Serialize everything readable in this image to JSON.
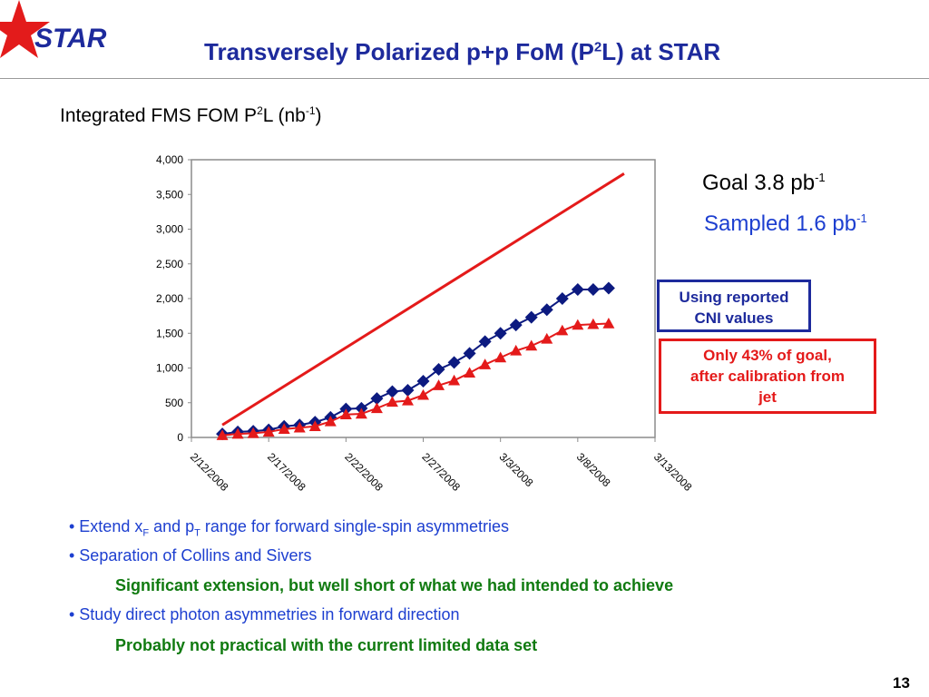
{
  "header": {
    "logo_text": "STAR",
    "title_pre": "Transversely Polarized p+p FoM (P",
    "title_sup": "2",
    "title_post": "L) at STAR"
  },
  "subtitle": {
    "pre": "Integrated FMS FOM P",
    "sup1": "2",
    "mid": "L (nb",
    "sup2": "-1",
    "post": ")"
  },
  "annotations": {
    "goal_text": "Goal 3.8 pb",
    "goal_sup": "-1",
    "sampled_text": "Sampled 1.6 pb",
    "sampled_sup": "-1",
    "box1_line1": "Using reported",
    "box1_line2": "CNI values",
    "box2_line1": "Only 43% of goal,",
    "box2_line2": "after calibration from",
    "box2_line3": "jet"
  },
  "bullets": {
    "b1_pre": "• Extend x",
    "b1_sub1": "F",
    "b1_mid": " and p",
    "b1_sub2": "T",
    "b1_post": " range for forward single-spin asymmetries",
    "b2": "• Separation of Collins and Sivers",
    "g1": "Significant extension, but well short of what we had intended to achieve",
    "b3": "• Study direct photon asymmetries in forward direction",
    "g2": "Probably not practical with the current limited data set"
  },
  "page_number": "13",
  "colors": {
    "title": "#1d2a9c",
    "goal_line": "#e41a1a",
    "diamond_series": "#0c1a80",
    "triangle_series": "#e41a1a",
    "bullet_text": "#1d3fd0",
    "green_text": "#107a10"
  },
  "chart_data": {
    "type": "line",
    "xlabel": "",
    "ylabel": "",
    "ylim": [
      0,
      4000
    ],
    "yticks": [
      "0",
      "500",
      "1,000",
      "1,500",
      "2,000",
      "2,500",
      "3,000",
      "3,500",
      "4,000"
    ],
    "xticks": [
      "2/12/2008",
      "2/17/2008",
      "2/22/2008",
      "2/27/2008",
      "3/3/2008",
      "3/8/2008",
      "3/13/2008"
    ],
    "xlim": [
      "2008-02-12",
      "2008-03-13"
    ],
    "grid": false,
    "series": [
      {
        "marker": "none",
        "color": "#e41a1a",
        "x": [
          "2008-02-14",
          "2008-03-11"
        ],
        "values": [
          180,
          3800
        ]
      },
      {
        "marker": "diamond",
        "color": "#0c1a80",
        "x": [
          "2008-02-14",
          "2008-02-15",
          "2008-02-16",
          "2008-02-17",
          "2008-02-18",
          "2008-02-19",
          "2008-02-20",
          "2008-02-21",
          "2008-02-22",
          "2008-02-23",
          "2008-02-24",
          "2008-02-25",
          "2008-02-26",
          "2008-02-27",
          "2008-02-28",
          "2008-02-29",
          "2008-03-01",
          "2008-03-02",
          "2008-03-03",
          "2008-03-04",
          "2008-03-05",
          "2008-03-06",
          "2008-03-07",
          "2008-03-08",
          "2008-03-09",
          "2008-03-10"
        ],
        "values": [
          50,
          80,
          90,
          110,
          160,
          180,
          220,
          290,
          410,
          420,
          560,
          660,
          680,
          810,
          980,
          1080,
          1210,
          1380,
          1500,
          1620,
          1730,
          1840,
          2000,
          2130,
          2130,
          2150
        ]
      },
      {
        "marker": "triangle",
        "color": "#e41a1a",
        "x": [
          "2008-02-14",
          "2008-02-15",
          "2008-02-16",
          "2008-02-17",
          "2008-02-18",
          "2008-02-19",
          "2008-02-20",
          "2008-02-21",
          "2008-02-22",
          "2008-02-23",
          "2008-02-24",
          "2008-02-25",
          "2008-02-26",
          "2008-02-27",
          "2008-02-28",
          "2008-02-29",
          "2008-03-01",
          "2008-03-02",
          "2008-03-03",
          "2008-03-04",
          "2008-03-05",
          "2008-03-06",
          "2008-03-07",
          "2008-03-08",
          "2008-03-09",
          "2008-03-10"
        ],
        "values": [
          30,
          50,
          60,
          80,
          120,
          140,
          160,
          230,
          330,
          340,
          420,
          510,
          530,
          610,
          750,
          820,
          930,
          1050,
          1150,
          1250,
          1320,
          1420,
          1540,
          1620,
          1630,
          1640
        ]
      }
    ]
  }
}
